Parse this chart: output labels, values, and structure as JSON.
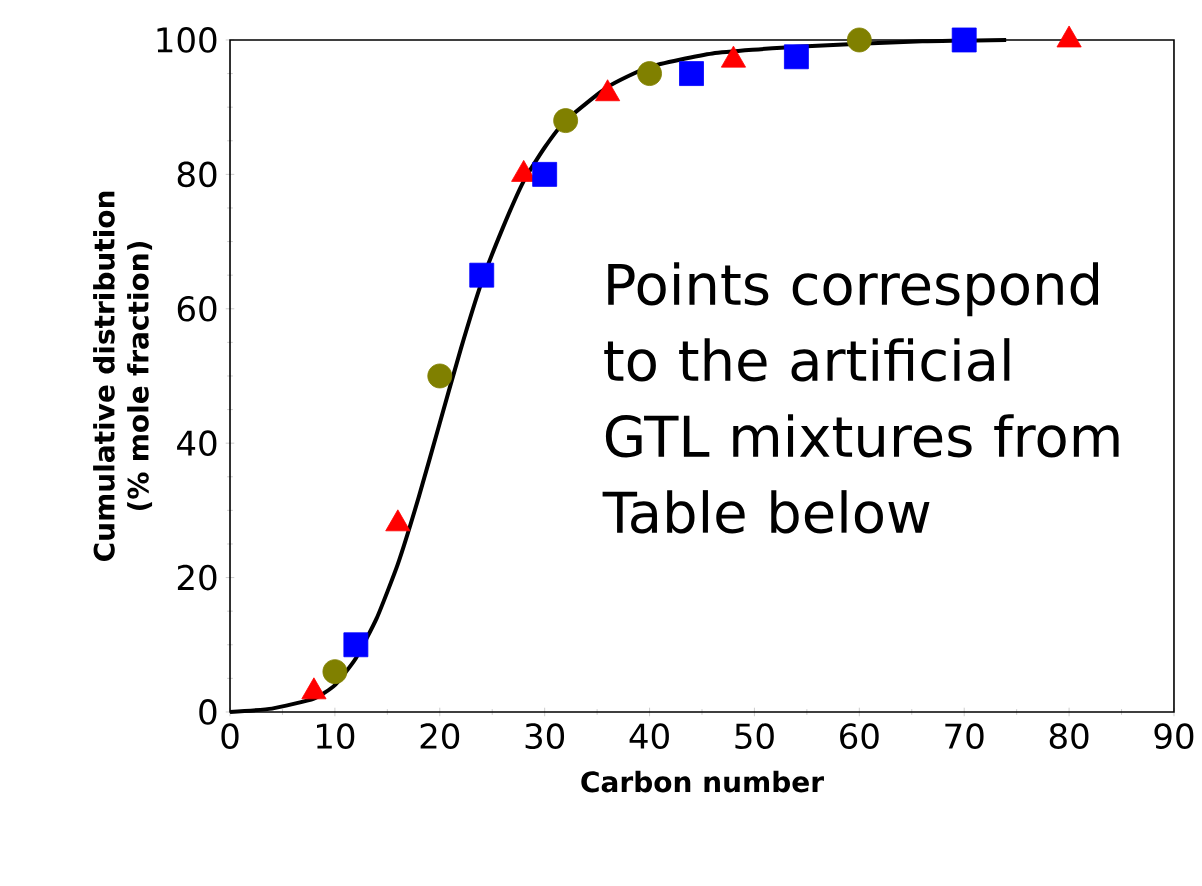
{
  "chart_data": {
    "type": "scatter",
    "xlabel": "Carbon number",
    "ylabel": "Cumulative distribution (% mole fraction)",
    "xlim": [
      0,
      90
    ],
    "xticks": [
      0,
      10,
      20,
      30,
      40,
      50,
      60,
      70,
      80,
      90
    ],
    "ylim": [
      0,
      100
    ],
    "yticks": [
      0,
      20,
      40,
      60,
      80,
      100
    ],
    "grid": false,
    "annotations": [
      "Points correspond to the artificial GTL mixtures from Table below"
    ],
    "series": [
      {
        "type": "line",
        "color": "#000000",
        "marker": "none",
        "line_style": "solid",
        "x": [
          0,
          4,
          8,
          10,
          12,
          14,
          16,
          18,
          20,
          22,
          24,
          26,
          28,
          30,
          32,
          36,
          40,
          46,
          54,
          66,
          74
        ],
        "values": [
          0,
          0.5,
          2,
          4,
          8,
          14,
          22,
          32,
          43,
          54,
          64,
          72,
          79,
          84,
          88,
          93,
          96,
          98,
          99,
          99.8,
          100
        ]
      },
      {
        "color": "#ff0000",
        "marker": "triangle",
        "x": [
          8,
          16,
          28,
          36,
          48,
          80
        ],
        "values": [
          3,
          28,
          80,
          92,
          97,
          100
        ]
      },
      {
        "color": "#808000",
        "marker": "circle",
        "x": [
          10,
          20,
          32,
          40,
          60
        ],
        "values": [
          6,
          50,
          88,
          95,
          100
        ]
      },
      {
        "color": "#0000ff",
        "marker": "square",
        "x": [
          12,
          24,
          30,
          44,
          54,
          70
        ],
        "values": [
          10,
          65,
          80,
          95,
          97.5,
          100
        ]
      }
    ]
  }
}
